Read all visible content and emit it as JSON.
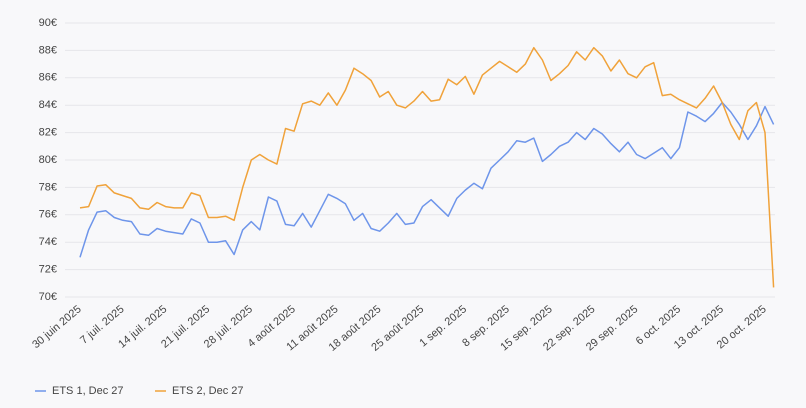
{
  "chart_data": {
    "type": "line",
    "categories": [
      "30 juin 2025",
      null,
      null,
      null,
      null,
      "7 juil. 2025",
      null,
      null,
      null,
      null,
      "14 juil. 2025",
      null,
      null,
      null,
      null,
      "21 juil. 2025",
      null,
      null,
      null,
      null,
      "28 juil. 2025",
      null,
      null,
      null,
      null,
      "4 août 2025",
      null,
      null,
      null,
      null,
      "11 août 2025",
      null,
      null,
      null,
      null,
      "18 août 2025",
      null,
      null,
      null,
      null,
      "25 août 2025",
      null,
      null,
      null,
      null,
      "1 sep. 2025",
      null,
      null,
      null,
      null,
      "8 sep. 2025",
      null,
      null,
      null,
      null,
      "15 sep. 2025",
      null,
      null,
      null,
      null,
      "22 sep. 2025",
      null,
      null,
      null,
      null,
      "29 sep. 2025",
      null,
      null,
      null,
      null,
      "6 oct. 2025",
      null,
      null,
      null,
      null,
      "13 oct. 2025",
      null,
      null,
      null,
      null,
      "20 oct. 2025",
      null
    ],
    "series": [
      {
        "name": "ETS 1, Dec 27",
        "color": "#6e95ea",
        "values": [
          72.9,
          74.9,
          76.2,
          76.3,
          75.8,
          75.6,
          75.5,
          74.6,
          74.5,
          75.0,
          74.8,
          74.7,
          74.6,
          75.7,
          75.4,
          74.0,
          74.0,
          74.1,
          73.1,
          74.9,
          75.5,
          74.9,
          77.3,
          77.0,
          75.3,
          75.2,
          76.1,
          75.1,
          76.3,
          77.5,
          77.2,
          76.8,
          75.6,
          76.1,
          75.0,
          74.8,
          75.4,
          76.1,
          75.3,
          75.4,
          76.6,
          77.1,
          76.5,
          75.9,
          77.2,
          77.8,
          78.3,
          77.9,
          79.4,
          80.0,
          80.6,
          81.4,
          81.3,
          81.6,
          79.9,
          80.4,
          81.0,
          81.3,
          82.0,
          81.5,
          82.3,
          81.9,
          81.2,
          80.6,
          81.3,
          80.4,
          80.1,
          80.5,
          80.9,
          80.1,
          80.9,
          83.5,
          83.2,
          82.8,
          83.4,
          84.2,
          83.5,
          82.6,
          81.5,
          82.5,
          83.9,
          82.6
        ]
      },
      {
        "name": "ETS 2, Dec 27",
        "color": "#f0a23a",
        "values": [
          76.5,
          76.6,
          78.1,
          78.2,
          77.6,
          77.4,
          77.2,
          76.5,
          76.4,
          76.9,
          76.6,
          76.5,
          76.5,
          77.6,
          77.4,
          75.8,
          75.8,
          75.9,
          75.6,
          78.0,
          80.0,
          80.4,
          80.0,
          79.7,
          82.3,
          82.1,
          84.1,
          84.3,
          84.0,
          84.9,
          84.0,
          85.1,
          86.7,
          86.3,
          85.8,
          84.6,
          85.0,
          84.0,
          83.8,
          84.3,
          85.0,
          84.3,
          84.4,
          85.9,
          85.5,
          86.1,
          84.8,
          86.2,
          86.7,
          87.2,
          86.8,
          86.4,
          87.0,
          88.2,
          87.3,
          85.8,
          86.3,
          86.9,
          87.9,
          87.3,
          88.2,
          87.6,
          86.5,
          87.3,
          86.3,
          86.0,
          86.8,
          87.1,
          84.7,
          84.8,
          84.4,
          84.1,
          83.8,
          84.5,
          85.4,
          84.2,
          82.6,
          81.5,
          83.6,
          84.2,
          82.0,
          70.7
        ]
      }
    ],
    "ylim": [
      70,
      90
    ],
    "yticks": [
      {
        "value": 70,
        "label": "70€"
      },
      {
        "value": 72,
        "label": "72€"
      },
      {
        "value": 74,
        "label": "74€"
      },
      {
        "value": 76,
        "label": "76€"
      },
      {
        "value": 78,
        "label": "78€"
      },
      {
        "value": 80,
        "label": "80€"
      },
      {
        "value": 82,
        "label": "82€"
      },
      {
        "value": 84,
        "label": "84€"
      },
      {
        "value": 86,
        "label": "86€"
      },
      {
        "value": 88,
        "label": "88€"
      },
      {
        "value": 90,
        "label": "90€"
      }
    ],
    "grid": true,
    "legend": "bottom-left"
  }
}
